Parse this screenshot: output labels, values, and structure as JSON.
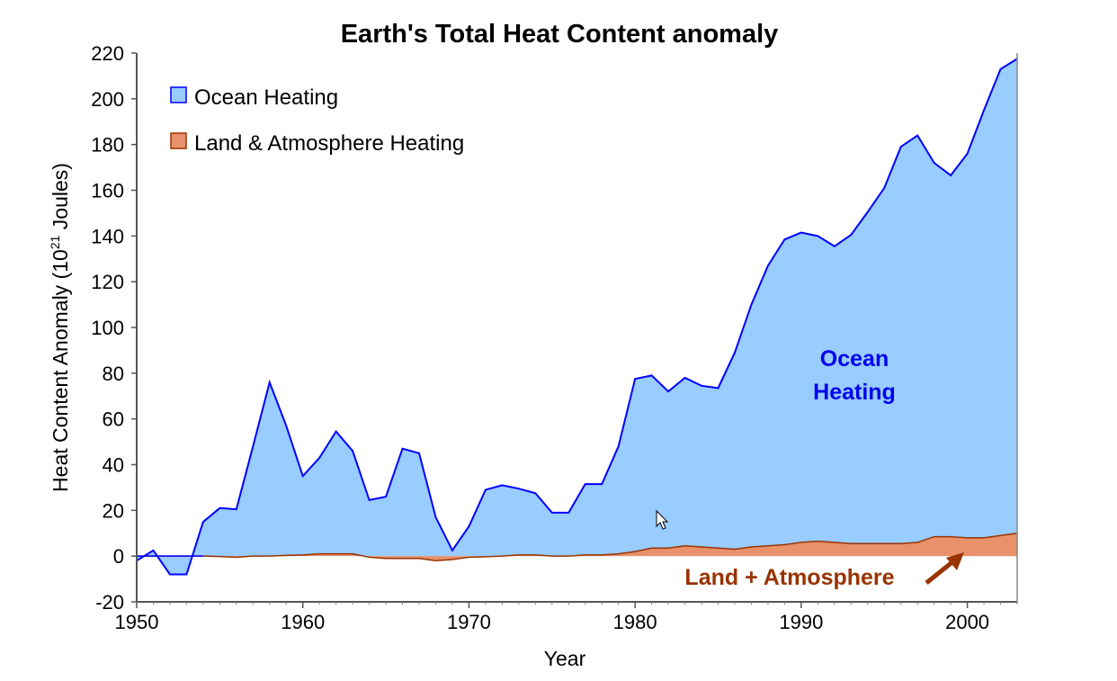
{
  "chart_data": {
    "type": "area",
    "title": "Earth's Total Heat Content anomaly",
    "xlabel": "Year",
    "ylabel_main": "Heat Content Anomaly (10",
    "ylabel_sup": "21",
    "ylabel_tail": " Joules)",
    "xlim": [
      1950,
      2003
    ],
    "ylim": [
      -20,
      220
    ],
    "xticks": [
      1950,
      1960,
      1970,
      1980,
      1990,
      2000
    ],
    "yticks": [
      -20,
      0,
      20,
      40,
      60,
      80,
      100,
      120,
      140,
      160,
      180,
      200,
      220
    ],
    "legend_position": "top-left",
    "x": [
      1950,
      1951,
      1952,
      1953,
      1954,
      1955,
      1956,
      1957,
      1958,
      1959,
      1960,
      1961,
      1962,
      1963,
      1964,
      1965,
      1966,
      1967,
      1968,
      1969,
      1970,
      1971,
      1972,
      1973,
      1974,
      1975,
      1976,
      1977,
      1978,
      1979,
      1980,
      1981,
      1982,
      1983,
      1984,
      1985,
      1986,
      1987,
      1988,
      1989,
      1990,
      1991,
      1992,
      1993,
      1994,
      1995,
      1996,
      1997,
      1998,
      1999,
      2000,
      2001,
      2002,
      2003
    ],
    "series": [
      {
        "name": "Ocean Heating",
        "color": "#99ccff",
        "line_color": "#0000ff",
        "values": [
          -2,
          2.5,
          -8,
          -8,
          15,
          21,
          20.5,
          48,
          76,
          57,
          35,
          43,
          54.5,
          46,
          24.5,
          26,
          47,
          45,
          17,
          2.5,
          13,
          29,
          31,
          29.5,
          27.5,
          19,
          19,
          31.5,
          31.5,
          48,
          77.5,
          79,
          72,
          78,
          74.5,
          73.5,
          89,
          110,
          127,
          138.5,
          141.5,
          140,
          135.5,
          140.5,
          150.5,
          161,
          179,
          184,
          172,
          166.5,
          176,
          195,
          213,
          217.5
        ]
      },
      {
        "name": "Land & Atmosphere Heating",
        "color": "#e8916a",
        "line_color": "#993300",
        "values": [
          0,
          0,
          0,
          0,
          0,
          -0.2,
          -0.5,
          0,
          0,
          0.3,
          0.5,
          1,
          1,
          1,
          -0.5,
          -1,
          -1,
          -1,
          -2,
          -1.5,
          -0.5,
          -0.3,
          0,
          0.5,
          0.5,
          0,
          0,
          0.5,
          0.5,
          1,
          2,
          3.5,
          3.5,
          4.5,
          4,
          3.5,
          3,
          4,
          4.5,
          5,
          6,
          6.5,
          6,
          5.5,
          5.5,
          5.5,
          5.5,
          6,
          8.5,
          8.5,
          8,
          8,
          9,
          10
        ]
      }
    ],
    "annotations": {
      "ocean_line1": "Ocean",
      "ocean_line2": "Heating",
      "land": "Land + Atmosphere"
    }
  }
}
